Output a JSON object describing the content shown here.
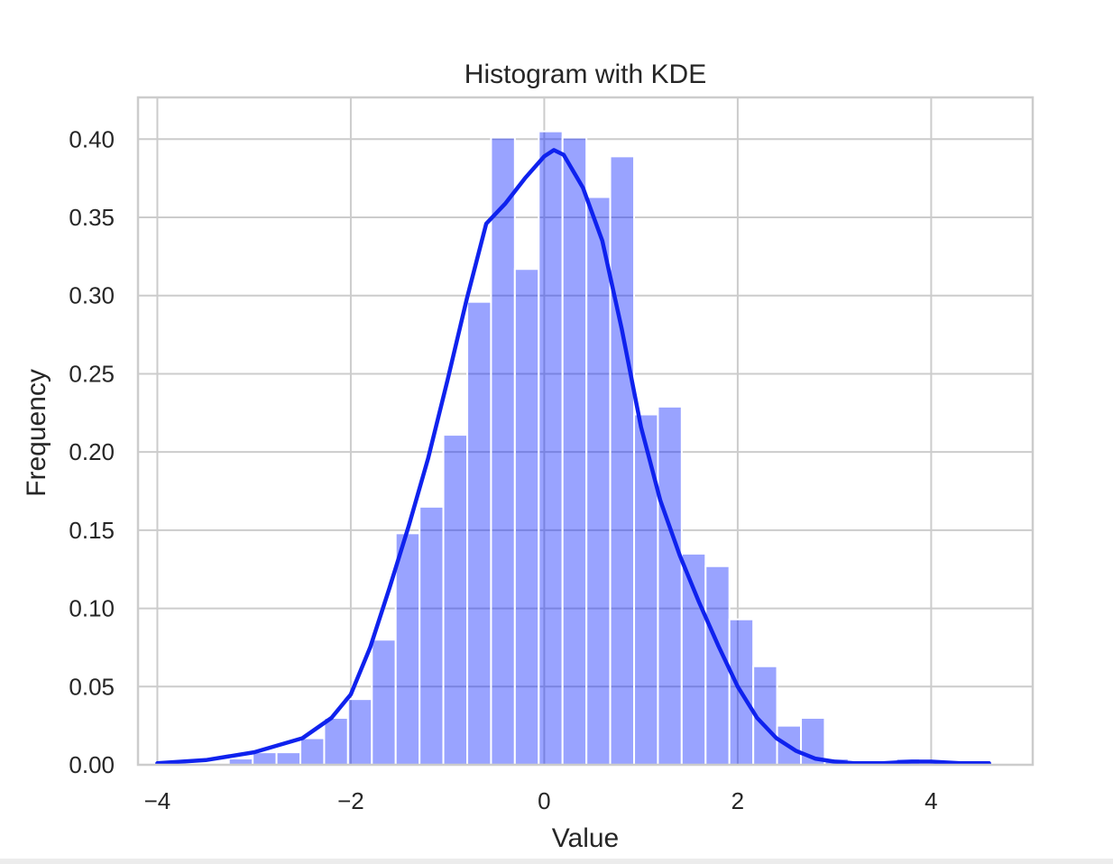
{
  "chart_data": {
    "type": "bar",
    "title": "Histogram with KDE",
    "xlabel": "Value",
    "ylabel": "Frequency",
    "xlim": [
      -4.2,
      5.05
    ],
    "ylim": [
      0,
      0.4267
    ],
    "grid": true,
    "xticks": [
      -4,
      -2,
      0,
      2,
      4
    ],
    "xtick_labels": [
      "−4",
      "−2",
      "0",
      "2",
      "4"
    ],
    "yticks": [
      0,
      0.05,
      0.1,
      0.15,
      0.2,
      0.25,
      0.3,
      0.35,
      0.4
    ],
    "ytick_labels": [
      "0.00",
      "0.05",
      "0.10",
      "0.15",
      "0.20",
      "0.25",
      "0.30",
      "0.35",
      "0.40"
    ],
    "bin_edges": [
      -4.0,
      -3.754,
      -3.507,
      -3.261,
      -3.014,
      -2.768,
      -2.521,
      -2.275,
      -2.029,
      -1.782,
      -1.536,
      -1.289,
      -1.043,
      -0.796,
      -0.55,
      -0.304,
      -0.057,
      0.189,
      0.436,
      0.682,
      0.929,
      1.175,
      1.421,
      1.668,
      1.914,
      2.161,
      2.407,
      2.654,
      2.9,
      3.146,
      3.393,
      3.639,
      3.886,
      4.132,
      4.379,
      4.625
    ],
    "bin_values": [
      0.0,
      0.0,
      0.0,
      0.004,
      0.008,
      0.008,
      0.017,
      0.03,
      0.042,
      0.08,
      0.148,
      0.165,
      0.211,
      0.296,
      0.401,
      0.317,
      0.405,
      0.401,
      0.363,
      0.389,
      0.224,
      0.229,
      0.135,
      0.127,
      0.093,
      0.063,
      0.025,
      0.03,
      0.004,
      0.0,
      0.0,
      0.004,
      0.0,
      0.0,
      0.0
    ],
    "series": [
      {
        "type": "line",
        "x": [
          -4.0,
          -3.5,
          -3.0,
          -2.5,
          -2.2,
          -2.0,
          -1.8,
          -1.6,
          -1.4,
          -1.2,
          -1.0,
          -0.8,
          -0.6,
          -0.4,
          -0.2,
          0.0,
          0.1,
          0.2,
          0.4,
          0.6,
          0.8,
          1.0,
          1.2,
          1.4,
          1.6,
          1.8,
          2.0,
          2.2,
          2.4,
          2.6,
          2.8,
          3.0,
          3.2,
          3.5,
          3.8,
          4.0,
          4.3,
          4.6
        ],
        "y": [
          0.001,
          0.003,
          0.008,
          0.017,
          0.03,
          0.045,
          0.075,
          0.113,
          0.153,
          0.196,
          0.246,
          0.298,
          0.346,
          0.359,
          0.375,
          0.389,
          0.393,
          0.39,
          0.369,
          0.335,
          0.279,
          0.216,
          0.169,
          0.134,
          0.104,
          0.076,
          0.05,
          0.03,
          0.017,
          0.009,
          0.004,
          0.002,
          0.001,
          0.001,
          0.002,
          0.002,
          0.001,
          0.001
        ]
      }
    ],
    "colors": {
      "bars": "#0019ff",
      "kde": "#0f22ee",
      "grid": "#cccccc",
      "text": "#262626"
    }
  }
}
